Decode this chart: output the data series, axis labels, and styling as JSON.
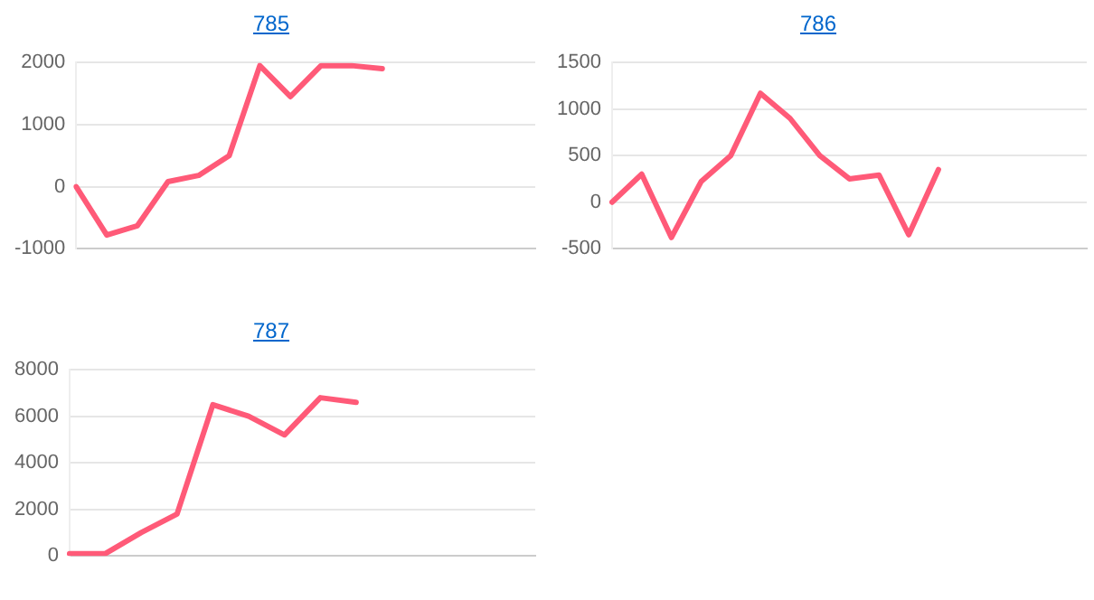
{
  "chart_data": [
    {
      "type": "line",
      "title": "785",
      "categories": [
        null,
        null,
        null,
        null,
        null,
        null,
        null,
        null,
        null,
        null,
        null,
        null,
        null,
        null,
        null,
        null
      ],
      "series": [
        {
          "color": "#ff5a78",
          "values": [
            0,
            -780,
            -630,
            80,
            180,
            500,
            1950,
            1450,
            1950,
            1950,
            1900,
            null,
            null,
            null,
            null,
            null
          ]
        }
      ],
      "ylim": [
        -1000,
        2000
      ],
      "yticks": [
        -1000,
        0,
        1000,
        2000
      ],
      "grid": "y",
      "marker": "none",
      "line_style": "solid"
    },
    {
      "type": "line",
      "title": "786",
      "categories": [
        null,
        null,
        null,
        null,
        null,
        null,
        null,
        null,
        null,
        null,
        null,
        null,
        null,
        null,
        null,
        null,
        null
      ],
      "series": [
        {
          "color": "#ff5a78",
          "values": [
            0,
            300,
            -380,
            220,
            500,
            1170,
            900,
            500,
            250,
            290,
            -350,
            350,
            null,
            null,
            null,
            null,
            null
          ]
        }
      ],
      "ylim": [
        -500,
        1500
      ],
      "yticks": [
        -500,
        0,
        500,
        1000,
        1500
      ],
      "grid": "y",
      "marker": "none",
      "line_style": "solid"
    },
    {
      "type": "line",
      "title": "787",
      "categories": [
        null,
        null,
        null,
        null,
        null,
        null,
        null,
        null,
        null,
        null,
        null,
        null,
        null,
        null
      ],
      "series": [
        {
          "color": "#ff5a78",
          "values": [
            100,
            100,
            1000,
            1800,
            6500,
            6000,
            5200,
            6800,
            6600,
            null,
            null,
            null,
            null,
            null
          ]
        }
      ],
      "ylim": [
        0,
        8000
      ],
      "yticks": [
        0,
        2000,
        4000,
        6000,
        8000
      ],
      "grid": "y",
      "marker": "none",
      "line_style": "solid"
    }
  ]
}
